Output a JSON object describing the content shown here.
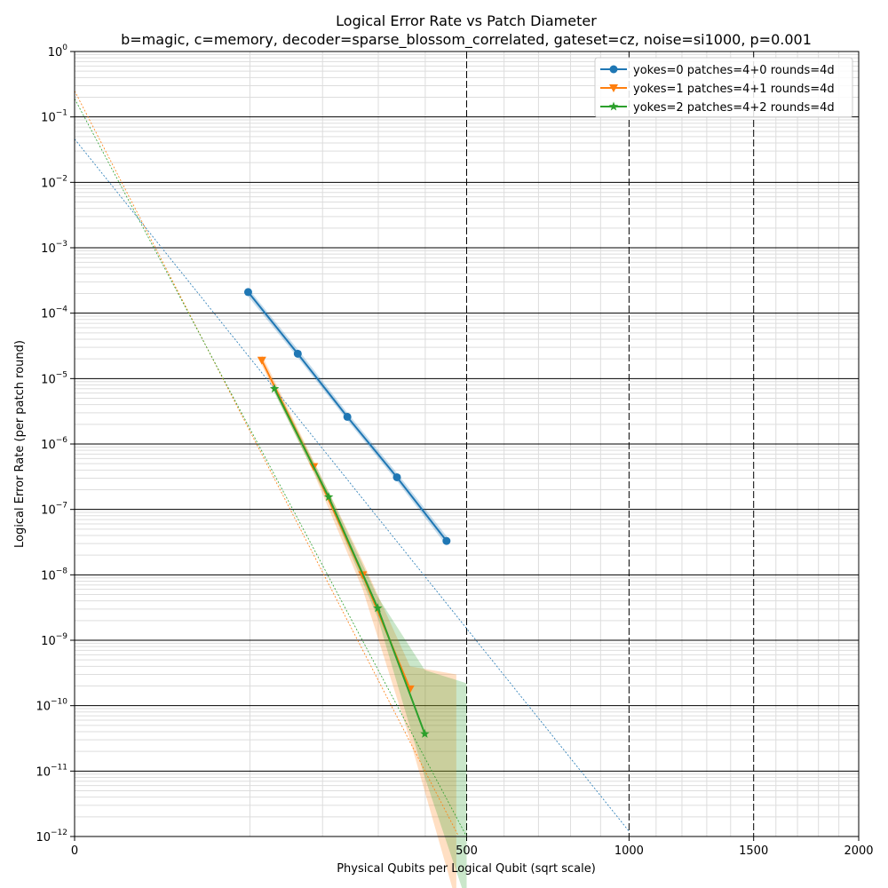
{
  "chart_data": {
    "type": "line",
    "title": "Logical Error Rate vs Patch Diameter",
    "subtitle": "b=magic, c=memory, decoder=sparse_blossom_correlated, gateset=cz, noise=si1000, p=0.001",
    "xlabel": "Physical Qubits per Logical Qubit (sqrt scale)",
    "ylabel": "Logical Error Rate (per patch round)",
    "xscale": "sqrt",
    "yscale": "log",
    "xlim": [
      0,
      2000
    ],
    "ylim": [
      1e-12,
      1
    ],
    "x_ticks": [
      0,
      500,
      1000,
      1500,
      2000
    ],
    "x_tick_labels": [
      "0",
      "500",
      "1000",
      "1500",
      "2000"
    ],
    "y_ticks": [
      -12,
      -11,
      -10,
      -9,
      -8,
      -7,
      -6,
      -5,
      -4,
      -3,
      -2,
      -1,
      0
    ],
    "y_tick_base": "10",
    "grid": true,
    "legend_position": "top-right",
    "series": [
      {
        "name": "yokes=0 patches=4+0 rounds=4d",
        "color": "#1f77b4",
        "marker": "circle",
        "x": [
          98,
          162,
          242,
          338,
          450
        ],
        "y": [
          0.00021,
          2.4e-05,
          2.6e-06,
          3.1e-07,
          3.3e-08
        ],
        "fit_line": {
          "x": [
            0,
            1000
          ],
          "y": [
            0.046,
            1.2e-12
          ]
        },
        "band_low": [
          0.00018,
          2.1e-05,
          2.3e-06,
          2.7e-07,
          2.8e-08
        ],
        "band_high": [
          0.00024,
          2.8e-05,
          3e-06,
          3.6e-07,
          3.9e-08
        ]
      },
      {
        "name": "yokes=1 patches=4+1 rounds=4d",
        "color": "#ff7f0e",
        "marker": "triangle-down",
        "x": [
          114,
          186,
          270,
          366,
          474
        ],
        "y": [
          1.9e-05,
          4.5e-07,
          1e-08,
          1.8e-10,
          1e-13
        ],
        "fit_line": {
          "x": [
            0,
            480
          ],
          "y": [
            0.25,
            1e-12
          ]
        },
        "band_low": [
          1.6e-05,
          3.6e-07,
          6e-09,
          3e-11,
          1e-13
        ],
        "band_high": [
          2.3e-05,
          5.5e-07,
          1.6e-08,
          4e-10,
          3e-10
        ]
      },
      {
        "name": "yokes=2 patches=4+2 rounds=4d",
        "color": "#2ca02c",
        "marker": "star",
        "x": [
          130,
          210,
          299,
          399,
          500
        ],
        "y": [
          7e-06,
          1.55e-07,
          3.1e-09,
          3.7e-11,
          1e-13
        ],
        "fit_line": {
          "x": [
            0,
            500
          ],
          "y": [
            0.19,
            1e-12
          ]
        },
        "band_low": [
          6e-06,
          1.3e-07,
          2.2e-09,
          8e-12,
          1e-13
        ],
        "band_high": [
          8.2e-06,
          1.85e-07,
          4.6e-09,
          3.5e-10,
          2.2e-10
        ]
      }
    ]
  }
}
